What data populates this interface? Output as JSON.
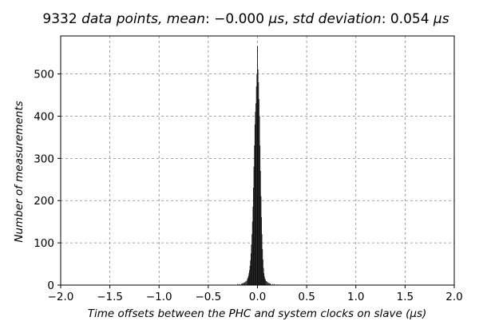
{
  "chart_data": {
    "type": "bar",
    "title": {
      "count": "9332",
      "count_label": "data points,",
      "mean_label": "mean",
      "mean_value": "−0.000",
      "std_label": "std deviation",
      "std_value": "0.054",
      "unit": "μs"
    },
    "xlabel": "Time offsets between the PHC and system clocks on slave (μs)",
    "ylabel": "Number of measurements",
    "xlim": [
      -2.0,
      2.0
    ],
    "ylim": [
      0,
      590
    ],
    "xticks": [
      -2.0,
      -1.5,
      -1.0,
      -0.5,
      0.0,
      0.5,
      1.0,
      1.5,
      2.0
    ],
    "xtick_labels": [
      "−2.0",
      "−1.5",
      "−1.0",
      "−0.5",
      "0.0",
      "0.5",
      "1.0",
      "1.5",
      "2.0"
    ],
    "yticks": [
      0,
      100,
      200,
      300,
      400,
      500
    ],
    "ytick_labels": [
      "0",
      "100",
      "200",
      "300",
      "400",
      "500"
    ],
    "grid": true,
    "bin_width": 0.005,
    "bins": [
      {
        "x": -0.2,
        "y": 2
      },
      {
        "x": -0.18,
        "y": 2
      },
      {
        "x": -0.16,
        "y": 3
      },
      {
        "x": -0.15,
        "y": 4
      },
      {
        "x": -0.14,
        "y": 5
      },
      {
        "x": -0.13,
        "y": 6
      },
      {
        "x": -0.12,
        "y": 8
      },
      {
        "x": -0.11,
        "y": 10
      },
      {
        "x": -0.1,
        "y": 15
      },
      {
        "x": -0.095,
        "y": 18
      },
      {
        "x": -0.09,
        "y": 22
      },
      {
        "x": -0.085,
        "y": 28
      },
      {
        "x": -0.08,
        "y": 35
      },
      {
        "x": -0.075,
        "y": 45
      },
      {
        "x": -0.07,
        "y": 58
      },
      {
        "x": -0.065,
        "y": 75
      },
      {
        "x": -0.06,
        "y": 95
      },
      {
        "x": -0.055,
        "y": 120
      },
      {
        "x": -0.05,
        "y": 150
      },
      {
        "x": -0.045,
        "y": 185
      },
      {
        "x": -0.04,
        "y": 230
      },
      {
        "x": -0.035,
        "y": 280
      },
      {
        "x": -0.03,
        "y": 330
      },
      {
        "x": -0.025,
        "y": 380
      },
      {
        "x": -0.02,
        "y": 410
      },
      {
        "x": -0.015,
        "y": 430
      },
      {
        "x": -0.01,
        "y": 470
      },
      {
        "x": -0.005,
        "y": 500
      },
      {
        "x": 0.0,
        "y": 565
      },
      {
        "x": 0.005,
        "y": 510
      },
      {
        "x": 0.01,
        "y": 480
      },
      {
        "x": 0.015,
        "y": 440
      },
      {
        "x": 0.02,
        "y": 400
      },
      {
        "x": 0.025,
        "y": 330
      },
      {
        "x": 0.03,
        "y": 270
      },
      {
        "x": 0.035,
        "y": 210
      },
      {
        "x": 0.04,
        "y": 160
      },
      {
        "x": 0.045,
        "y": 120
      },
      {
        "x": 0.05,
        "y": 85
      },
      {
        "x": 0.055,
        "y": 60
      },
      {
        "x": 0.06,
        "y": 40
      },
      {
        "x": 0.065,
        "y": 28
      },
      {
        "x": 0.07,
        "y": 20
      },
      {
        "x": 0.075,
        "y": 15
      },
      {
        "x": 0.08,
        "y": 12
      },
      {
        "x": 0.09,
        "y": 9
      },
      {
        "x": 0.1,
        "y": 7
      },
      {
        "x": 0.11,
        "y": 5
      },
      {
        "x": 0.12,
        "y": 4
      },
      {
        "x": 0.13,
        "y": 3
      },
      {
        "x": 0.15,
        "y": 2
      },
      {
        "x": 0.17,
        "y": 2
      },
      {
        "x": 0.2,
        "y": 1
      }
    ]
  }
}
